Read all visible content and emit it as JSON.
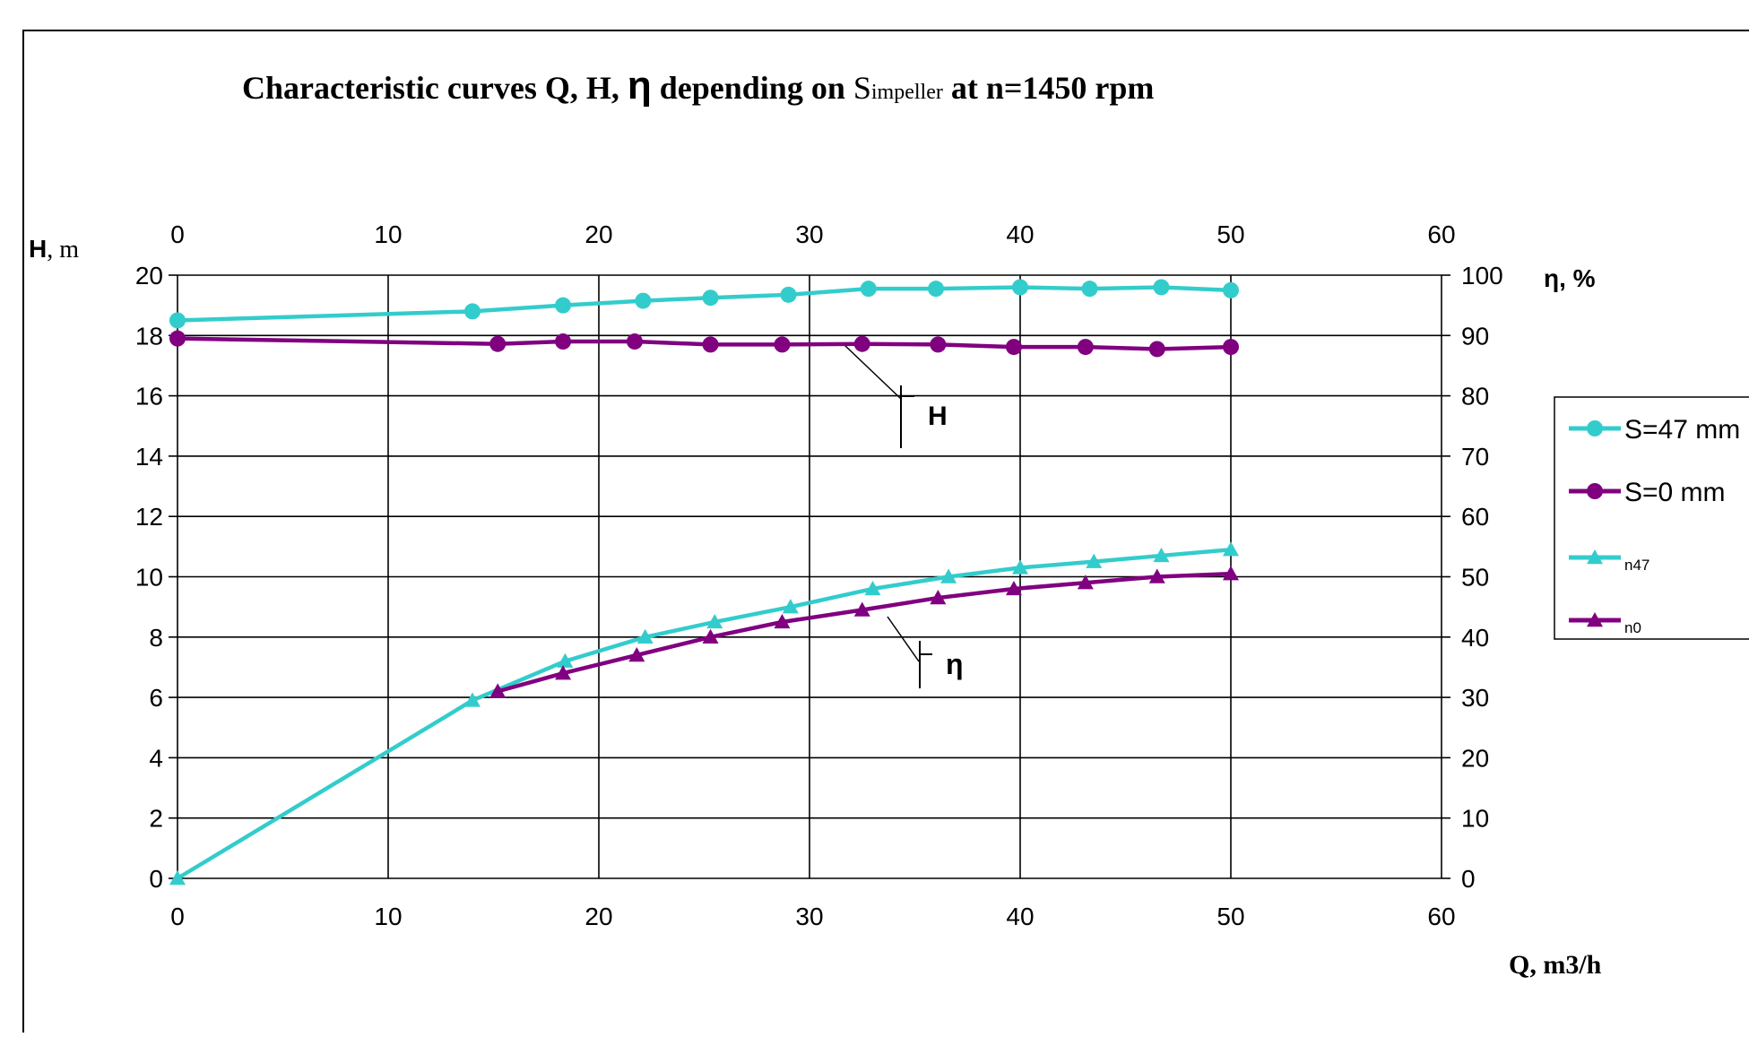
{
  "chart_data": {
    "type": "line",
    "title": {
      "part1": "Characteristic curves Q, H,",
      "eta": "η",
      "part2": "depending on",
      "s_main": "S",
      "s_sub": "impeller",
      "part3": "at n=1450 rpm"
    },
    "x_axis": {
      "label": "Q, m3/h",
      "range": [
        0,
        60
      ],
      "ticks": [
        "0",
        "10",
        "20",
        "30",
        "40",
        "50",
        "60"
      ],
      "top_ticks": [
        "0",
        "10",
        "20",
        "30",
        "40",
        "50",
        "60"
      ]
    },
    "y_left": {
      "label_bold": "H",
      "label_rest": ", m",
      "range": [
        0,
        20
      ],
      "ticks": [
        "0",
        "2",
        "4",
        "6",
        "8",
        "10",
        "12",
        "14",
        "16",
        "18",
        "20"
      ]
    },
    "y_right": {
      "label": "η, %",
      "range": [
        0,
        100
      ],
      "ticks": [
        "0",
        "10",
        "20",
        "30",
        "40",
        "50",
        "60",
        "70",
        "80",
        "90",
        "100"
      ]
    },
    "grid": true,
    "legend_position": "right",
    "series": [
      {
        "name": "S=47 mm",
        "axis": "left",
        "marker": "circle",
        "color": "#33CCCC",
        "x": [
          0,
          14,
          18.3,
          22.1,
          25.3,
          29,
          32.8,
          36,
          40,
          43.3,
          46.7,
          50
        ],
        "y": [
          18.5,
          18.8,
          19.0,
          19.15,
          19.25,
          19.35,
          19.55,
          19.55,
          19.6,
          19.55,
          19.6,
          19.5
        ]
      },
      {
        "name": "S=0 mm",
        "axis": "left",
        "marker": "circle",
        "color": "#800080",
        "x": [
          0,
          15.2,
          18.3,
          21.7,
          25.3,
          28.7,
          32.5,
          36.1,
          39.7,
          43.1,
          46.5,
          50
        ],
        "y": [
          17.9,
          17.72,
          17.8,
          17.8,
          17.7,
          17.7,
          17.72,
          17.7,
          17.62,
          17.62,
          17.55,
          17.62
        ]
      },
      {
        "name": "n47",
        "axis": "right",
        "marker": "triangle",
        "color": "#33CCCC",
        "x": [
          0,
          14,
          18.4,
          22.2,
          25.5,
          29.1,
          33,
          36.6,
          40,
          43.5,
          46.7,
          50
        ],
        "y": [
          0,
          29.5,
          36,
          40,
          42.5,
          45,
          48,
          50,
          51.5,
          52.5,
          53.5,
          54.5
        ]
      },
      {
        "name": "n0",
        "axis": "right",
        "marker": "triangle",
        "color": "#800080",
        "x": [
          15.2,
          18.3,
          21.8,
          25.3,
          28.7,
          32.5,
          36.1,
          39.7,
          43.1,
          46.5,
          50
        ],
        "y": [
          31,
          34,
          37,
          40,
          42.5,
          44.5,
          46.5,
          48,
          49,
          50,
          50.5
        ]
      }
    ],
    "annotations": [
      "H",
      "η"
    ]
  }
}
